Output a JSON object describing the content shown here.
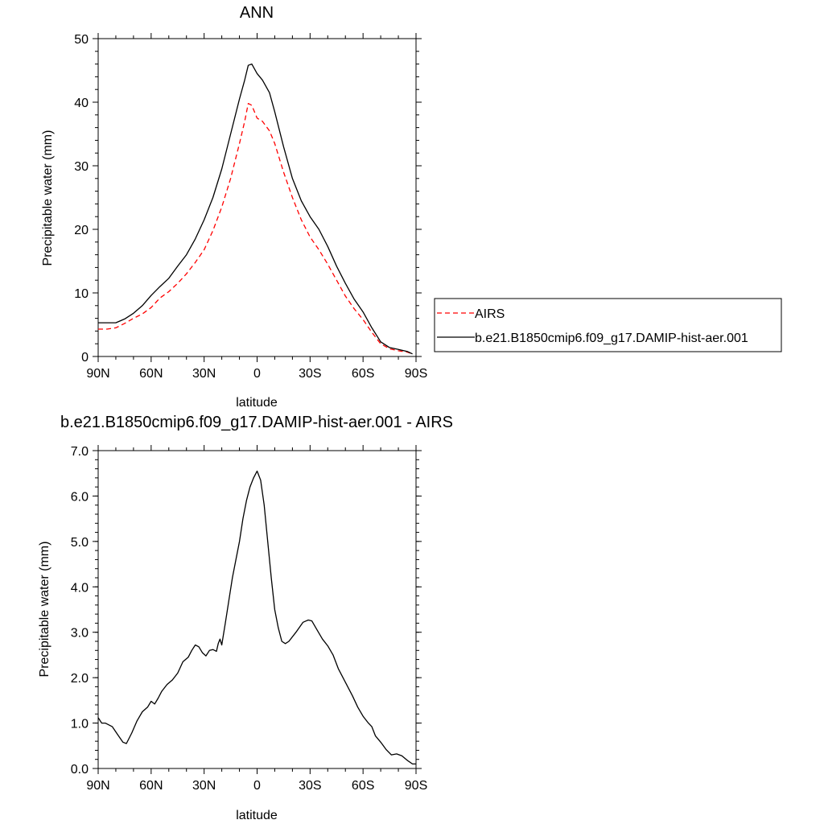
{
  "chart_data": [
    {
      "type": "line",
      "title": "ANN",
      "xlabel": "latitude",
      "ylabel": "Precipitable water (mm)",
      "xlim": [
        90,
        -90
      ],
      "ylim": [
        0,
        50
      ],
      "xticks": [
        {
          "v": 90,
          "label": "90N"
        },
        {
          "v": 60,
          "label": "60N"
        },
        {
          "v": 30,
          "label": "30N"
        },
        {
          "v": 0,
          "label": "0"
        },
        {
          "v": -30,
          "label": "30S"
        },
        {
          "v": -60,
          "label": "60S"
        },
        {
          "v": -90,
          "label": "90S"
        }
      ],
      "yticks": [
        {
          "v": 0,
          "label": "0"
        },
        {
          "v": 10,
          "label": "10"
        },
        {
          "v": 20,
          "label": "20"
        },
        {
          "v": 30,
          "label": "30"
        },
        {
          "v": 40,
          "label": "40"
        },
        {
          "v": 50,
          "label": "50"
        }
      ],
      "legend_placement": "right",
      "series": [
        {
          "name": "AIRS",
          "color": "#ff0000",
          "dash": "dashed",
          "points": [
            [
              90,
              4.3
            ],
            [
              85,
              4.3
            ],
            [
              80,
              4.5
            ],
            [
              75,
              5.2
            ],
            [
              70,
              6.0
            ],
            [
              65,
              6.7
            ],
            [
              60,
              7.7
            ],
            [
              55,
              9.2
            ],
            [
              50,
              10.2
            ],
            [
              45,
              11.5
            ],
            [
              40,
              13.0
            ],
            [
              35,
              14.8
            ],
            [
              30,
              16.8
            ],
            [
              25,
              19.8
            ],
            [
              20,
              23.5
            ],
            [
              15,
              28.0
            ],
            [
              10,
              33.5
            ],
            [
              7,
              37.0
            ],
            [
              5,
              39.8
            ],
            [
              3,
              39.5
            ],
            [
              0,
              37.5
            ],
            [
              -3,
              37.0
            ],
            [
              -7,
              35.5
            ],
            [
              -10,
              33.5
            ],
            [
              -15,
              29.0
            ],
            [
              -20,
              25.0
            ],
            [
              -25,
              21.5
            ],
            [
              -30,
              18.8
            ],
            [
              -35,
              16.8
            ],
            [
              -40,
              14.5
            ],
            [
              -45,
              12.0
            ],
            [
              -50,
              9.5
            ],
            [
              -55,
              7.5
            ],
            [
              -60,
              5.8
            ],
            [
              -65,
              3.8
            ],
            [
              -70,
              2.0
            ],
            [
              -75,
              1.2
            ],
            [
              -80,
              0.9
            ],
            [
              -85,
              0.7
            ],
            [
              -88,
              0.4
            ]
          ]
        },
        {
          "name": "b.e21.B1850cmip6.f09_g17.DAMIP-hist-aer.001",
          "color": "#000000",
          "dash": "solid",
          "points": [
            [
              90,
              5.3
            ],
            [
              85,
              5.3
            ],
            [
              80,
              5.3
            ],
            [
              75,
              5.9
            ],
            [
              70,
              6.8
            ],
            [
              65,
              8.0
            ],
            [
              60,
              9.6
            ],
            [
              55,
              11.0
            ],
            [
              50,
              12.3
            ],
            [
              45,
              14.2
            ],
            [
              40,
              16.0
            ],
            [
              35,
              18.5
            ],
            [
              30,
              21.5
            ],
            [
              25,
              25.0
            ],
            [
              20,
              29.5
            ],
            [
              15,
              35.0
            ],
            [
              10,
              40.5
            ],
            [
              7,
              43.5
            ],
            [
              5,
              45.8
            ],
            [
              3,
              46.0
            ],
            [
              0,
              44.5
            ],
            [
              -3,
              43.5
            ],
            [
              -7,
              41.5
            ],
            [
              -10,
              38.5
            ],
            [
              -15,
              33.0
            ],
            [
              -20,
              28.0
            ],
            [
              -25,
              24.5
            ],
            [
              -30,
              22.0
            ],
            [
              -35,
              20.0
            ],
            [
              -40,
              17.3
            ],
            [
              -45,
              14.2
            ],
            [
              -50,
              11.5
            ],
            [
              -55,
              9.0
            ],
            [
              -60,
              7.0
            ],
            [
              -65,
              4.5
            ],
            [
              -70,
              2.3
            ],
            [
              -75,
              1.4
            ],
            [
              -80,
              1.1
            ],
            [
              -85,
              0.8
            ],
            [
              -88,
              0.4
            ]
          ]
        }
      ]
    },
    {
      "type": "line",
      "title": "b.e21.B1850cmip6.f09_g17.DAMIP-hist-aer.001 - AIRS",
      "xlabel": "latitude",
      "ylabel": "Precipitable water (mm)",
      "xlim": [
        90,
        -90
      ],
      "ylim": [
        0,
        7
      ],
      "xticks": [
        {
          "v": 90,
          "label": "90N"
        },
        {
          "v": 60,
          "label": "60N"
        },
        {
          "v": 30,
          "label": "30N"
        },
        {
          "v": 0,
          "label": "0"
        },
        {
          "v": -30,
          "label": "30S"
        },
        {
          "v": -60,
          "label": "60S"
        },
        {
          "v": -90,
          "label": "90S"
        }
      ],
      "yticks": [
        {
          "v": 0,
          "label": "0.0"
        },
        {
          "v": 1,
          "label": "1.0"
        },
        {
          "v": 2,
          "label": "2.0"
        },
        {
          "v": 3,
          "label": "3.0"
        },
        {
          "v": 4,
          "label": "4.0"
        },
        {
          "v": 5,
          "label": "5.0"
        },
        {
          "v": 6,
          "label": "6.0"
        },
        {
          "v": 7,
          "label": "7.0"
        }
      ],
      "series": [
        {
          "color": "#000000",
          "dash": "solid",
          "points": [
            [
              90,
              1.12
            ],
            [
              88,
              1.0
            ],
            [
              86,
              1.0
            ],
            [
              82,
              0.92
            ],
            [
              79,
              0.75
            ],
            [
              76,
              0.58
            ],
            [
              74,
              0.55
            ],
            [
              71,
              0.78
            ],
            [
              68,
              1.05
            ],
            [
              65,
              1.25
            ],
            [
              62,
              1.35
            ],
            [
              60,
              1.48
            ],
            [
              58,
              1.42
            ],
            [
              56,
              1.55
            ],
            [
              54,
              1.7
            ],
            [
              51,
              1.85
            ],
            [
              48,
              1.95
            ],
            [
              45,
              2.1
            ],
            [
              42,
              2.35
            ],
            [
              39,
              2.45
            ],
            [
              37,
              2.6
            ],
            [
              35,
              2.72
            ],
            [
              33,
              2.68
            ],
            [
              31,
              2.55
            ],
            [
              29,
              2.48
            ],
            [
              27,
              2.6
            ],
            [
              25,
              2.62
            ],
            [
              23,
              2.58
            ],
            [
              22,
              2.75
            ],
            [
              21,
              2.85
            ],
            [
              20,
              2.72
            ],
            [
              18,
              3.2
            ],
            [
              16,
              3.7
            ],
            [
              14,
              4.2
            ],
            [
              12,
              4.6
            ],
            [
              10,
              5.0
            ],
            [
              8,
              5.5
            ],
            [
              6,
              5.9
            ],
            [
              4,
              6.2
            ],
            [
              2,
              6.4
            ],
            [
              0,
              6.55
            ],
            [
              -2,
              6.35
            ],
            [
              -4,
              5.8
            ],
            [
              -6,
              5.0
            ],
            [
              -8,
              4.2
            ],
            [
              -10,
              3.5
            ],
            [
              -12,
              3.1
            ],
            [
              -14,
              2.8
            ],
            [
              -16,
              2.75
            ],
            [
              -18,
              2.8
            ],
            [
              -22,
              3.0
            ],
            [
              -26,
              3.22
            ],
            [
              -29,
              3.27
            ],
            [
              -31,
              3.25
            ],
            [
              -34,
              3.05
            ],
            [
              -37,
              2.85
            ],
            [
              -40,
              2.7
            ],
            [
              -43,
              2.5
            ],
            [
              -46,
              2.2
            ],
            [
              -50,
              1.9
            ],
            [
              -54,
              1.6
            ],
            [
              -57,
              1.35
            ],
            [
              -60,
              1.15
            ],
            [
              -63,
              1.0
            ],
            [
              -65,
              0.92
            ],
            [
              -67,
              0.72
            ],
            [
              -70,
              0.58
            ],
            [
              -73,
              0.42
            ],
            [
              -76,
              0.3
            ],
            [
              -79,
              0.32
            ],
            [
              -82,
              0.28
            ],
            [
              -85,
              0.18
            ],
            [
              -88,
              0.1
            ],
            [
              -90,
              0.1
            ]
          ]
        }
      ]
    }
  ]
}
